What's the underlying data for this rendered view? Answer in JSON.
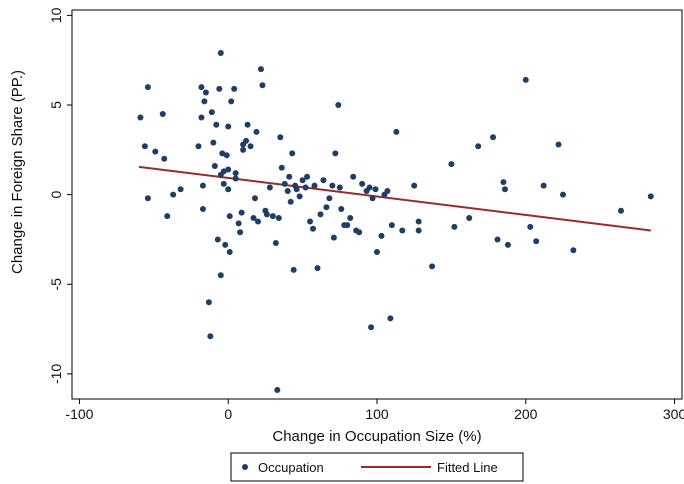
{
  "chart_data": {
    "type": "scatter",
    "title": "",
    "xlabel": "Change in Occupation Size (%)",
    "ylabel": "Change in Foreign Share (PP.)",
    "xlim": [
      -105,
      305
    ],
    "ylim": [
      -11.4,
      10.3
    ],
    "xticks": [
      -100,
      0,
      100,
      200,
      300
    ],
    "yticks": [
      -10,
      -5,
      0,
      5,
      10
    ],
    "grid": false,
    "legend_position": "bottom",
    "colors": {
      "points": "#1f3d66",
      "fitted_line": "#9b2b2b"
    },
    "series": [
      {
        "name": "Occupation",
        "kind": "scatter",
        "points": [
          [
            -59,
            4.3
          ],
          [
            -56,
            2.7
          ],
          [
            -54,
            6.0
          ],
          [
            -54,
            -0.2
          ],
          [
            -49,
            2.4
          ],
          [
            -44,
            4.5
          ],
          [
            -43,
            2.0
          ],
          [
            -41,
            -1.2
          ],
          [
            -37,
            0.0
          ],
          [
            -32,
            0.3
          ],
          [
            -20,
            2.7
          ],
          [
            -18,
            6.0
          ],
          [
            -18,
            4.3
          ],
          [
            -17,
            0.5
          ],
          [
            -17,
            -0.8
          ],
          [
            -16,
            5.2
          ],
          [
            -15,
            5.7
          ],
          [
            -13,
            -6.0
          ],
          [
            -12,
            -7.9
          ],
          [
            -11,
            4.6
          ],
          [
            -10,
            2.9
          ],
          [
            -9,
            1.6
          ],
          [
            -8,
            3.9
          ],
          [
            -7,
            -2.5
          ],
          [
            -6,
            5.9
          ],
          [
            -5,
            7.9
          ],
          [
            -5,
            1.1
          ],
          [
            -5,
            -4.5
          ],
          [
            -4,
            2.3
          ],
          [
            -3,
            1.3
          ],
          [
            -3,
            0.6
          ],
          [
            -2,
            -2.8
          ],
          [
            -1,
            2.2
          ],
          [
            0,
            3.8
          ],
          [
            0,
            1.4
          ],
          [
            0,
            0.3
          ],
          [
            1,
            -3.2
          ],
          [
            1,
            -1.2
          ],
          [
            2,
            5.2
          ],
          [
            4,
            5.9
          ],
          [
            5,
            1.2
          ],
          [
            5,
            0.9
          ],
          [
            7,
            -1.6
          ],
          [
            8,
            -2.1
          ],
          [
            9,
            -1.0
          ],
          [
            10,
            2.5
          ],
          [
            10,
            2.8
          ],
          [
            12,
            3.0
          ],
          [
            13,
            3.9
          ],
          [
            15,
            2.7
          ],
          [
            17,
            -1.3
          ],
          [
            18,
            -0.2
          ],
          [
            19,
            3.5
          ],
          [
            20,
            -1.5
          ],
          [
            22,
            7.0
          ],
          [
            23,
            6.1
          ],
          [
            25,
            -0.9
          ],
          [
            26,
            -1.1
          ],
          [
            28,
            0.4
          ],
          [
            30,
            -1.2
          ],
          [
            32,
            -2.7
          ],
          [
            33,
            -10.9
          ],
          [
            34,
            -1.3
          ],
          [
            35,
            3.2
          ],
          [
            36,
            1.5
          ],
          [
            38,
            0.6
          ],
          [
            40,
            0.2
          ],
          [
            41,
            1.0
          ],
          [
            42,
            -0.4
          ],
          [
            43,
            2.3
          ],
          [
            44,
            -4.2
          ],
          [
            45,
            0.5
          ],
          [
            46,
            0.3
          ],
          [
            48,
            -0.1
          ],
          [
            50,
            0.8
          ],
          [
            52,
            0.4
          ],
          [
            53,
            1.0
          ],
          [
            55,
            -1.5
          ],
          [
            57,
            -1.9
          ],
          [
            58,
            0.5
          ],
          [
            60,
            -4.1
          ],
          [
            62,
            -1.1
          ],
          [
            64,
            0.8
          ],
          [
            66,
            -0.7
          ],
          [
            68,
            -0.2
          ],
          [
            70,
            0.5
          ],
          [
            71,
            -2.4
          ],
          [
            72,
            2.3
          ],
          [
            74,
            5.0
          ],
          [
            75,
            0.4
          ],
          [
            76,
            -0.8
          ],
          [
            78,
            -1.7
          ],
          [
            80,
            -1.7
          ],
          [
            82,
            -1.3
          ],
          [
            84,
            1.0
          ],
          [
            86,
            -2.0
          ],
          [
            88,
            -2.1
          ],
          [
            90,
            0.6
          ],
          [
            93,
            0.2
          ],
          [
            95,
            0.4
          ],
          [
            96,
            -7.4
          ],
          [
            97,
            -0.2
          ],
          [
            99,
            0.3
          ],
          [
            100,
            -3.2
          ],
          [
            103,
            -2.3
          ],
          [
            105,
            0.0
          ],
          [
            107,
            0.2
          ],
          [
            109,
            -6.9
          ],
          [
            110,
            -1.7
          ],
          [
            113,
            3.5
          ],
          [
            117,
            -2.0
          ],
          [
            125,
            0.5
          ],
          [
            128,
            -1.5
          ],
          [
            128,
            -2.0
          ],
          [
            137,
            -4.0
          ],
          [
            150,
            1.7
          ],
          [
            152,
            -1.8
          ],
          [
            162,
            -1.3
          ],
          [
            168,
            2.7
          ],
          [
            178,
            3.2
          ],
          [
            181,
            -2.5
          ],
          [
            185,
            0.7
          ],
          [
            186,
            0.3
          ],
          [
            188,
            -2.8
          ],
          [
            200,
            6.4
          ],
          [
            203,
            -1.8
          ],
          [
            207,
            -2.6
          ],
          [
            212,
            0.5
          ],
          [
            222,
            2.8
          ],
          [
            225,
            0.0
          ],
          [
            232,
            -3.1
          ],
          [
            264,
            -0.9
          ],
          [
            284,
            -0.1
          ]
        ]
      },
      {
        "name": "Fitted Line",
        "kind": "line",
        "points": [
          [
            -60,
            1.55
          ],
          [
            284,
            -2.0
          ]
        ]
      }
    ]
  }
}
